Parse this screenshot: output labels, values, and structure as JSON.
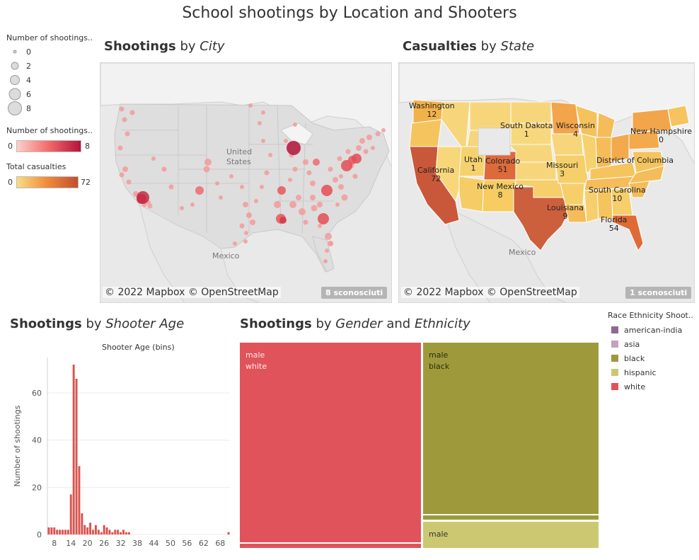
{
  "title": "School shootings by Location and Shooters",
  "legends": {
    "size": {
      "title": "Number of shootings..",
      "labels": [
        "0",
        "2",
        "4",
        "6",
        "8"
      ]
    },
    "count_color": {
      "title": "Number of shootings..",
      "min": "0",
      "max": "8",
      "colors": [
        "#fbd0c8",
        "#b3133a"
      ]
    },
    "casualty_color": {
      "title": "Total casualties",
      "min": "0",
      "max": "72",
      "colors": [
        "#f9dc80",
        "#c14f2e"
      ]
    }
  },
  "city_map": {
    "title_bold": "Shootings",
    "title_by": "by",
    "title_italic": "City",
    "copyright": "© 2022 Mapbox © OpenStreetMap",
    "unknown": "8 sconosciuti",
    "labels": {
      "country1": "United",
      "country1b": "States",
      "country2": "Mexico"
    }
  },
  "state_map": {
    "title_bold": "Casualties",
    "title_by": "by",
    "title_italic": "State",
    "copyright": "© 2022 Mapbox © OpenStreetMap",
    "unknown": "1 sconosciuti",
    "mexico": "Mexico",
    "states": [
      {
        "name": "Washington",
        "value": "12"
      },
      {
        "name": "South Dakota",
        "value": "1"
      },
      {
        "name": "Wisconsin",
        "value": "4"
      },
      {
        "name": "New Hampshire",
        "value": "0"
      },
      {
        "name": "California",
        "value": "72"
      },
      {
        "name": "Utah",
        "value": "1"
      },
      {
        "name": "Colorado",
        "value": "51"
      },
      {
        "name": "Missouri",
        "value": "3"
      },
      {
        "name": "District of Columbia",
        "value": ""
      },
      {
        "name": "New Mexico",
        "value": "8"
      },
      {
        "name": "South Carolina",
        "value": "10"
      },
      {
        "name": "Louisiana",
        "value": "9"
      },
      {
        "name": "Florida",
        "value": "54"
      }
    ]
  },
  "age_chart": {
    "title_bold": "Shootings",
    "title_by": "by",
    "title_italic": "Shooter Age",
    "header": "Shooter Age (bins)",
    "ylabel": "Number of shootings",
    "color": "#d9534f"
  },
  "treemap": {
    "title_bold": "Shootings",
    "title_by": "by",
    "title_italic1": "Gender",
    "title_and": "and",
    "title_italic2": "Ethnicity",
    "legend_title": "Race Ethnicity Shoot..",
    "legend": [
      {
        "label": "american-india",
        "color": "#8e6a8e"
      },
      {
        "label": "asia",
        "color": "#c4a2bd"
      },
      {
        "label": "black",
        "color": "#9e9a3c"
      },
      {
        "label": "hispanic",
        "color": "#ccc872"
      },
      {
        "label": "white",
        "color": "#e0535a"
      }
    ],
    "cells": [
      {
        "line1": "male",
        "line2": "white",
        "color": "#e0535a",
        "text": "#ffe9e9"
      },
      {
        "line1": "male",
        "line2": "black",
        "color": "#9e9a3c",
        "text": "#2b2b10"
      },
      {
        "line1": "male",
        "line2": "",
        "color": "#ccc872",
        "text": "#333"
      }
    ]
  },
  "chart_data": [
    {
      "type": "bar",
      "title": "Shooter Age (bins)",
      "xlabel": "",
      "ylabel": "Number of shootings",
      "ylim": [
        0,
        75
      ],
      "yticks": [
        0,
        20,
        40,
        60
      ],
      "xticks": [
        8,
        14,
        20,
        26,
        32,
        38,
        44,
        50,
        56,
        62,
        68
      ],
      "x": [
        6,
        7,
        8,
        9,
        10,
        11,
        12,
        13,
        14,
        15,
        16,
        17,
        18,
        19,
        20,
        21,
        22,
        23,
        24,
        25,
        26,
        27,
        28,
        29,
        30,
        31,
        32,
        33,
        34,
        35,
        36,
        37,
        38,
        39,
        40,
        41,
        42,
        43,
        44,
        45,
        46,
        47,
        48,
        49,
        50,
        51,
        52,
        53,
        54,
        55,
        56,
        57,
        58,
        59,
        60,
        61,
        62,
        63,
        64,
        65,
        66,
        67,
        68,
        69,
        70,
        71
      ],
      "values": [
        3,
        3,
        3,
        2,
        2,
        2,
        2,
        2,
        17,
        72,
        66,
        29,
        9,
        4,
        3,
        5,
        2,
        4,
        2,
        1,
        4,
        3,
        2,
        1,
        2,
        2,
        1,
        2,
        1,
        1,
        0,
        0,
        0,
        0,
        0,
        0,
        0,
        0,
        0,
        0,
        0,
        0,
        0,
        0,
        0,
        0,
        0,
        0,
        0,
        0,
        0,
        0,
        0,
        0,
        0,
        0,
        0,
        0,
        0,
        0,
        0,
        0,
        0,
        0,
        0,
        1
      ]
    },
    {
      "type": "treemap",
      "title": "",
      "categories": [
        "male white",
        "male black",
        "male hispanic"
      ],
      "values": [
        52,
        44,
        8
      ]
    }
  ]
}
